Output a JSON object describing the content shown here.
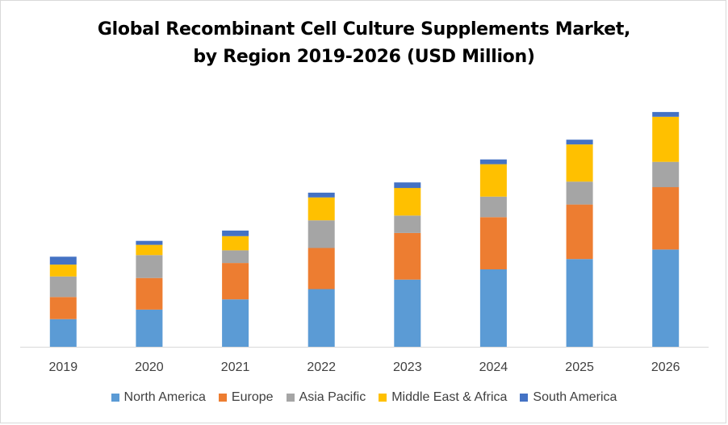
{
  "title_line1": "Global Recombinant Cell Culture Supplements Market,",
  "title_line2": "by Region 2019-2026 (USD Million)",
  "chart_data": {
    "type": "bar",
    "stacked": true,
    "title": "Global Recombinant Cell Culture Supplements Market, by Region 2019-2026 (USD Million)",
    "xlabel": "",
    "ylabel": "",
    "categories": [
      "2019",
      "2020",
      "2021",
      "2022",
      "2023",
      "2024",
      "2025",
      "2026"
    ],
    "ylim": [
      0,
      300
    ],
    "grid": false,
    "legend_position": "bottom",
    "series": [
      {
        "name": "North America",
        "color": "#5B9BD5",
        "values": [
          35,
          47,
          60,
          73,
          85,
          98,
          111,
          123
        ]
      },
      {
        "name": "Europe",
        "color": "#ED7D31",
        "values": [
          28,
          40,
          46,
          52,
          59,
          66,
          69,
          79
        ]
      },
      {
        "name": "Asia Pacific",
        "color": "#A5A5A5",
        "values": [
          26,
          29,
          16,
          35,
          22,
          26,
          29,
          32
        ]
      },
      {
        "name": "Middle East & Africa",
        "color": "#FFC000",
        "values": [
          15,
          13,
          18,
          29,
          35,
          41,
          47,
          57
        ]
      },
      {
        "name": "South America",
        "color": "#4472C4",
        "values": [
          10,
          5,
          7,
          6,
          7,
          6,
          6,
          6
        ]
      }
    ]
  }
}
